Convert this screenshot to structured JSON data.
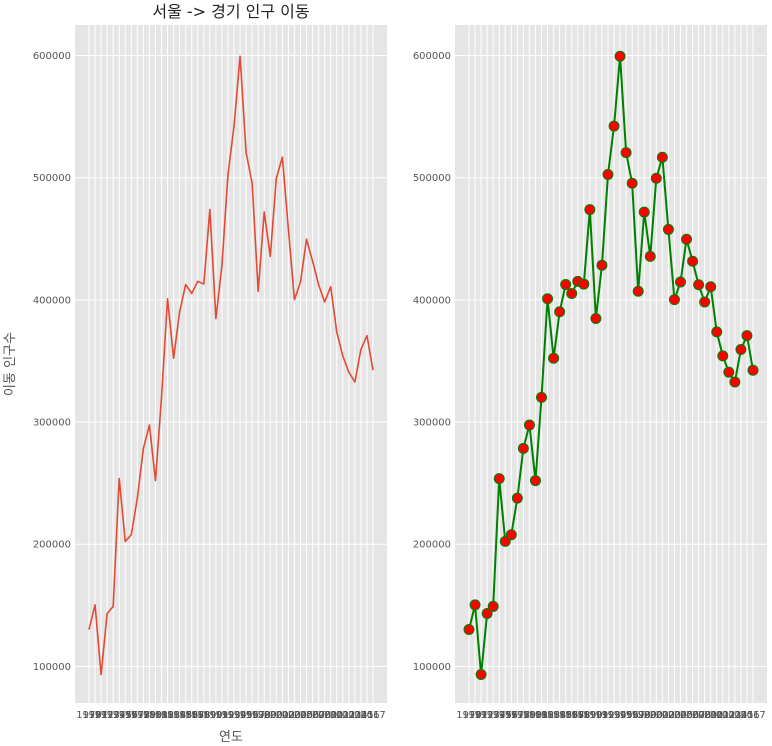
{
  "chart_data": [
    {
      "type": "line",
      "title": "서울 -> 경기 인구 이동",
      "xlabel": "연도",
      "ylabel": "이동 인구수",
      "x": [
        "1970",
        "1971",
        "1972",
        "1973",
        "1974",
        "1975",
        "1976",
        "1977",
        "1978",
        "1979",
        "1980",
        "1981",
        "1982",
        "1983",
        "1984",
        "1985",
        "1986",
        "1987",
        "1988",
        "1989",
        "1990",
        "1991",
        "1992",
        "1993",
        "1994",
        "1995",
        "1996",
        "1997",
        "1998",
        "1999",
        "2000",
        "2001",
        "2002",
        "2003",
        "2004",
        "2005",
        "2006",
        "2007",
        "2008",
        "2009",
        "2010",
        "2011",
        "2012",
        "2013",
        "2014",
        "2015",
        "2016",
        "2017"
      ],
      "series": [
        {
          "values": [
            130149,
            150313,
            93333,
            143234,
            149045,
            253705,
            202276,
            207722,
            237684,
            278411,
            297539,
            252073,
            320174,
            400875,
            352238,
            390265,
            412535,
            405220,
            415174,
            412933,
            473889,
            384714,
            428344,
            502584,
            542204,
            599411,
            520566,
            495454,
            407050,
            471841,
            435573,
            499575,
            516765,
            457656,
            400206,
            414621,
            449632,
            431637,
            412408,
            398282,
            410735,
            373771,
            354135,
            340801,
            332785,
            359337,
            370760,
            342433
          ]
        }
      ],
      "ylim": [
        70000,
        625000
      ],
      "yticks": [
        100000,
        200000,
        300000,
        400000,
        500000,
        600000
      ],
      "grid": true,
      "style": "ggplot",
      "line_color": "#e24a33"
    },
    {
      "type": "line",
      "x": [
        "1970",
        "1971",
        "1972",
        "1973",
        "1974",
        "1975",
        "1976",
        "1977",
        "1978",
        "1979",
        "1980",
        "1981",
        "1982",
        "1983",
        "1984",
        "1985",
        "1986",
        "1987",
        "1988",
        "1989",
        "1990",
        "1991",
        "1992",
        "1993",
        "1994",
        "1995",
        "1996",
        "1997",
        "1998",
        "1999",
        "2000",
        "2001",
        "2002",
        "2003",
        "2004",
        "2005",
        "2006",
        "2007",
        "2008",
        "2009",
        "2010",
        "2011",
        "2012",
        "2013",
        "2014",
        "2015",
        "2016",
        "2017"
      ],
      "series": [
        {
          "values": [
            130149,
            150313,
            93333,
            143234,
            149045,
            253705,
            202276,
            207722,
            237684,
            278411,
            297539,
            252073,
            320174,
            400875,
            352238,
            390265,
            412535,
            405220,
            415174,
            412933,
            473889,
            384714,
            428344,
            502584,
            542204,
            599411,
            520566,
            495454,
            407050,
            471841,
            435573,
            499575,
            516765,
            457656,
            400206,
            414621,
            449632,
            431637,
            412408,
            398282,
            410735,
            373771,
            354135,
            340801,
            332785,
            359337,
            370760,
            342433
          ]
        }
      ],
      "ylim": [
        70000,
        625000
      ],
      "yticks": [
        100000,
        200000,
        300000,
        400000,
        500000,
        600000
      ],
      "grid": true,
      "style": "ggplot",
      "markers": true,
      "line_color": "#008000",
      "marker_face_color": "#ff0000"
    }
  ]
}
